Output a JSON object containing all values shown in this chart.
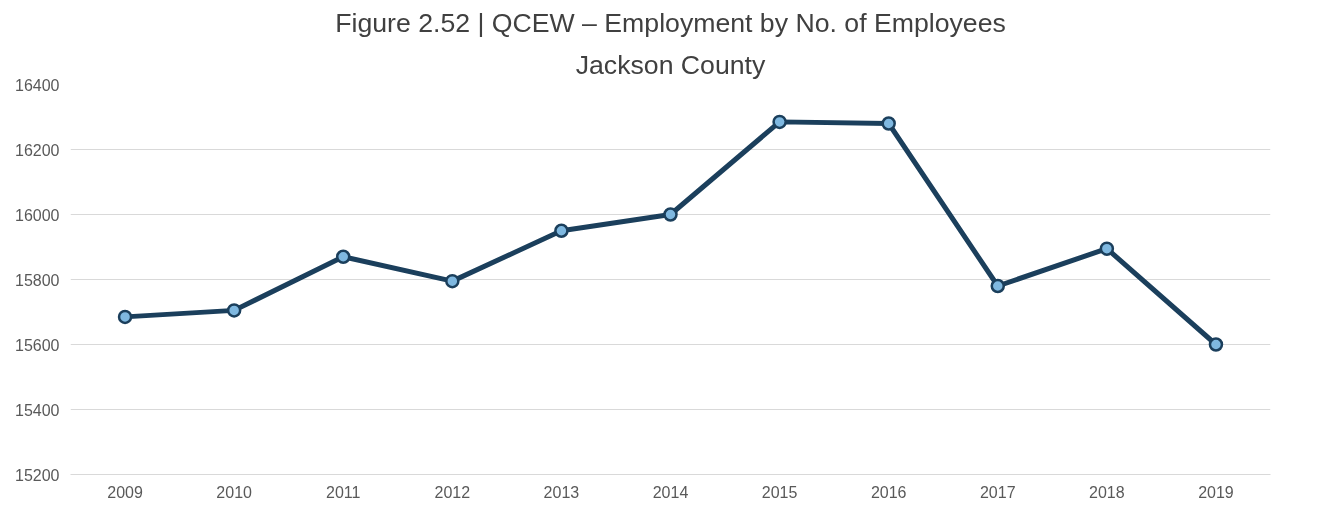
{
  "chart_data": {
    "type": "line",
    "title": "Figure 2.52 | QCEW – Employment by No. of Employees",
    "subtitle": "Jackson County",
    "categories": [
      "2009",
      "2010",
      "2011",
      "2012",
      "2013",
      "2014",
      "2015",
      "2016",
      "2017",
      "2018",
      "2019"
    ],
    "series": [
      {
        "color": "#1b3f5c",
        "values": [
          15685,
          15705,
          15870,
          15795,
          15950,
          16000,
          16285,
          16280,
          15780,
          15895,
          15600
        ]
      }
    ],
    "ylim": [
      15200,
      16400
    ],
    "yticks": [
      15200,
      15400,
      15600,
      15800,
      16000,
      16200,
      16400
    ],
    "grid": "y",
    "marker": "circle",
    "line_style": "solid"
  }
}
